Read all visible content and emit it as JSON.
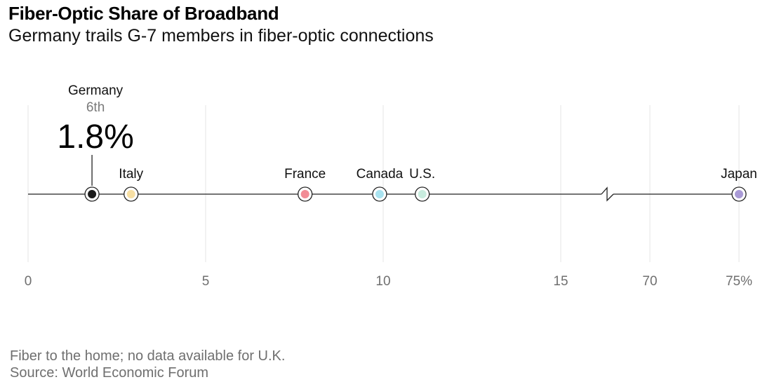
{
  "chart_data": {
    "type": "dot",
    "title": "Fiber-Optic Share of Broadband",
    "subtitle": "Germany trails G-7 members in fiber-optic connections",
    "x_ticks": [
      {
        "value": 0,
        "label": "0"
      },
      {
        "value": 5,
        "label": "5"
      },
      {
        "value": 10,
        "label": "10"
      },
      {
        "value": 15,
        "label": "15"
      },
      {
        "value": 70,
        "label": "70"
      },
      {
        "value": 75,
        "label": "75%"
      }
    ],
    "axis_break": {
      "after": 15,
      "resume": 70
    },
    "points": [
      {
        "country": "Germany",
        "value": 1.8,
        "color": "#1a1a1a",
        "highlight": true,
        "rank": "6th",
        "value_label": "1.8%"
      },
      {
        "country": "Italy",
        "value": 2.9,
        "color": "#f7dfa3"
      },
      {
        "country": "France",
        "value": 7.8,
        "color": "#f28c96"
      },
      {
        "country": "Canada",
        "value": 9.9,
        "color": "#a9e3f0"
      },
      {
        "country": "U.S.",
        "value": 11.1,
        "color": "#c8ecde"
      },
      {
        "country": "Japan",
        "value": 75.0,
        "color": "#a99ad6"
      }
    ]
  },
  "footer": {
    "note": "Fiber to the home; no data available for U.K.",
    "source": "Source: World Economic Forum"
  }
}
